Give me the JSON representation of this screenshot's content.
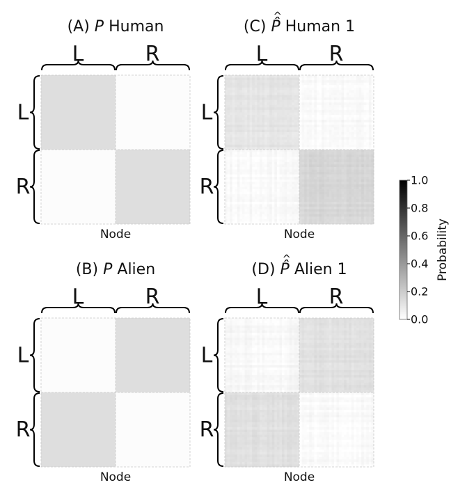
{
  "chart_data": [
    {
      "type": "heatmap",
      "panel_label": "(A)",
      "symbol": "P",
      "name": "Human",
      "xlabel": "Node",
      "groups": [
        "L",
        "R"
      ],
      "block_values": [
        [
          0.13,
          0.01
        ],
        [
          0.01,
          0.13
        ]
      ],
      "noise": 0
    },
    {
      "type": "heatmap",
      "panel_label": "(B)",
      "symbol": "P",
      "name": "Alien",
      "xlabel": "Node",
      "groups": [
        "L",
        "R"
      ],
      "block_values": [
        [
          0.01,
          0.13
        ],
        [
          0.13,
          0.01
        ]
      ],
      "noise": 0
    },
    {
      "type": "heatmap",
      "panel_label": "(C)",
      "symbol": "P̂",
      "name": "Human 1",
      "xlabel": "Node",
      "groups": [
        "L",
        "R"
      ],
      "block_values": [
        [
          0.1,
          0.02
        ],
        [
          0.02,
          0.16
        ]
      ],
      "noise": 0.05
    },
    {
      "type": "heatmap",
      "panel_label": "(D)",
      "symbol": "P̂",
      "name": "Alien 1",
      "xlabel": "Node",
      "groups": [
        "L",
        "R"
      ],
      "block_values": [
        [
          0.03,
          0.12
        ],
        [
          0.12,
          0.02
        ]
      ],
      "noise": 0.05
    }
  ],
  "colorbar": {
    "label": "Probability",
    "range": [
      0.0,
      1.0
    ],
    "ticks": [
      "0.0",
      "0.2",
      "0.4",
      "0.6",
      "0.8",
      "1.0"
    ],
    "colormap": "Greys",
    "low_color": "#ffffff",
    "high_color": "#000000"
  }
}
